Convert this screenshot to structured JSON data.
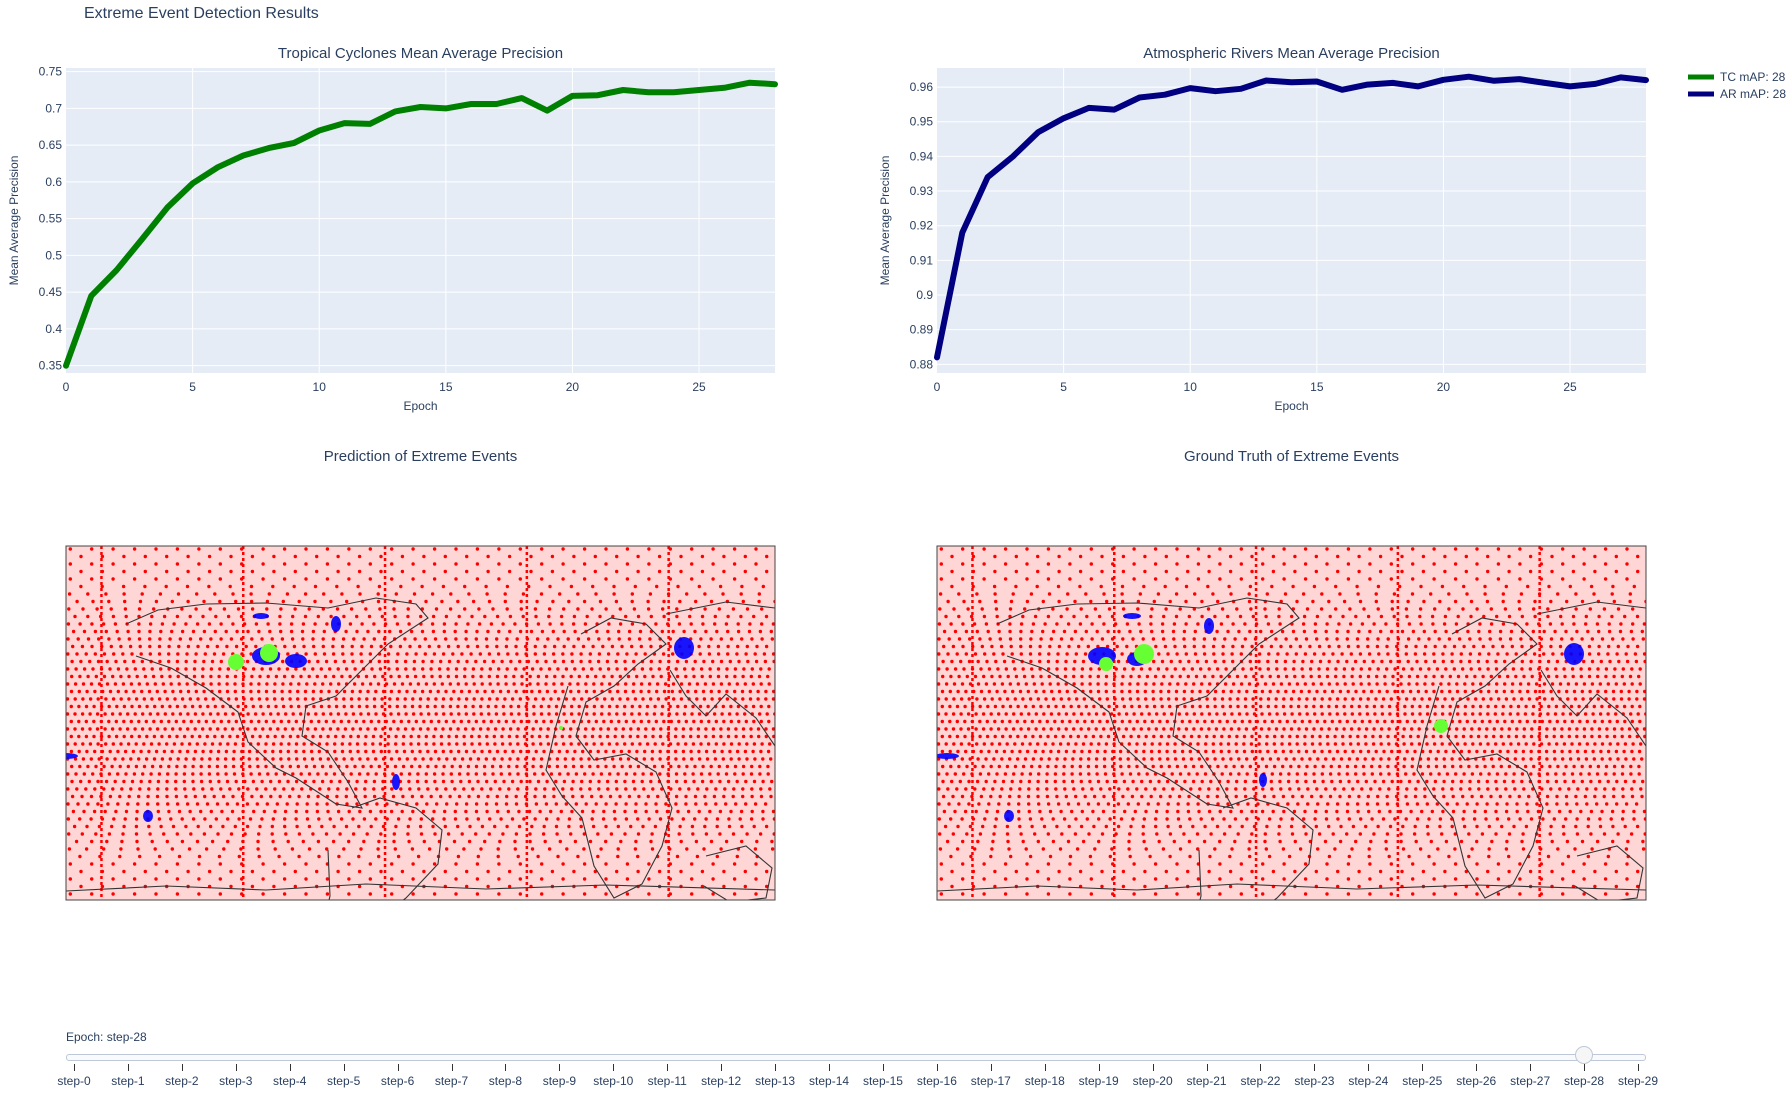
{
  "page_title": "Extreme Event Detection Results",
  "chart_data": [
    {
      "type": "line",
      "title": "Tropical Cyclones Mean Average Precision",
      "xlabel": "Epoch",
      "ylabel": "Mean Average Precision",
      "xlim": [
        0,
        28
      ],
      "ylim": [
        0.34,
        0.755
      ],
      "xticks": [
        0,
        5,
        10,
        15,
        20,
        25
      ],
      "yticks": [
        0.35,
        0.4,
        0.45,
        0.5,
        0.55,
        0.6,
        0.65,
        0.7,
        0.75
      ],
      "grid": true,
      "series": [
        {
          "name": "TC mAP: 28",
          "color": "#008000",
          "x": [
            0,
            1,
            2,
            3,
            4,
            5,
            6,
            7,
            8,
            9,
            10,
            11,
            12,
            13,
            14,
            15,
            16,
            17,
            18,
            19,
            20,
            21,
            22,
            23,
            24,
            25,
            26,
            27,
            28
          ],
          "y": [
            0.35,
            0.445,
            0.48,
            0.522,
            0.565,
            0.598,
            0.62,
            0.636,
            0.646,
            0.653,
            0.67,
            0.68,
            0.679,
            0.696,
            0.702,
            0.7,
            0.706,
            0.706,
            0.714,
            0.697,
            0.717,
            0.718,
            0.725,
            0.722,
            0.722,
            0.725,
            0.728,
            0.735,
            0.733
          ]
        }
      ]
    },
    {
      "type": "line",
      "title": "Atmospheric Rivers Mean Average Precision",
      "xlabel": "Epoch",
      "ylabel": "Mean Average Precision",
      "xlim": [
        0,
        28
      ],
      "ylim": [
        0.8775,
        0.9655
      ],
      "xticks": [
        0,
        5,
        10,
        15,
        20,
        25
      ],
      "yticks": [
        0.88,
        0.89,
        0.9,
        0.91,
        0.92,
        0.93,
        0.94,
        0.95,
        0.96
      ],
      "grid": true,
      "series": [
        {
          "name": "AR mAP: 28",
          "color": "#000080",
          "x": [
            0,
            1,
            2,
            3,
            4,
            5,
            6,
            7,
            8,
            9,
            10,
            11,
            12,
            13,
            14,
            15,
            16,
            17,
            18,
            19,
            20,
            21,
            22,
            23,
            24,
            25,
            26,
            27,
            28
          ],
          "y": [
            0.882,
            0.918,
            0.934,
            0.94,
            0.947,
            0.951,
            0.954,
            0.9535,
            0.957,
            0.9578,
            0.9597,
            0.9588,
            0.9595,
            0.9619,
            0.9614,
            0.9616,
            0.9592,
            0.9607,
            0.9612,
            0.9602,
            0.9621,
            0.963,
            0.9618,
            0.9623,
            0.9612,
            0.9602,
            0.9609,
            0.9628,
            0.962
          ]
        }
      ]
    },
    {
      "type": "scatter",
      "title": "Prediction of Extreme Events",
      "colors": {
        "background": "#ff0000",
        "atmospheric_river": "#0000ff",
        "tropical_cyclone": "#66ff33"
      }
    },
    {
      "type": "scatter",
      "title": "Ground Truth of Extreme Events",
      "colors": {
        "background": "#ff0000",
        "atmospheric_river": "#0000ff",
        "tropical_cyclone": "#66ff33"
      }
    }
  ],
  "legend": {
    "placement": "top-right",
    "entries": [
      {
        "label": "TC mAP: 28",
        "color": "#008000"
      },
      {
        "label": "AR mAP: 28",
        "color": "#000080"
      }
    ]
  },
  "slider": {
    "current_label": "Epoch: step-28",
    "active_index": 28,
    "steps": [
      "step-0",
      "step-1",
      "step-2",
      "step-3",
      "step-4",
      "step-5",
      "step-6",
      "step-7",
      "step-8",
      "step-9",
      "step-10",
      "step-11",
      "step-12",
      "step-13",
      "step-14",
      "step-15",
      "step-16",
      "step-17",
      "step-18",
      "step-19",
      "step-20",
      "step-21",
      "step-22",
      "step-23",
      "step-24",
      "step-25",
      "step-26",
      "step-27",
      "step-28",
      "step-29"
    ]
  }
}
